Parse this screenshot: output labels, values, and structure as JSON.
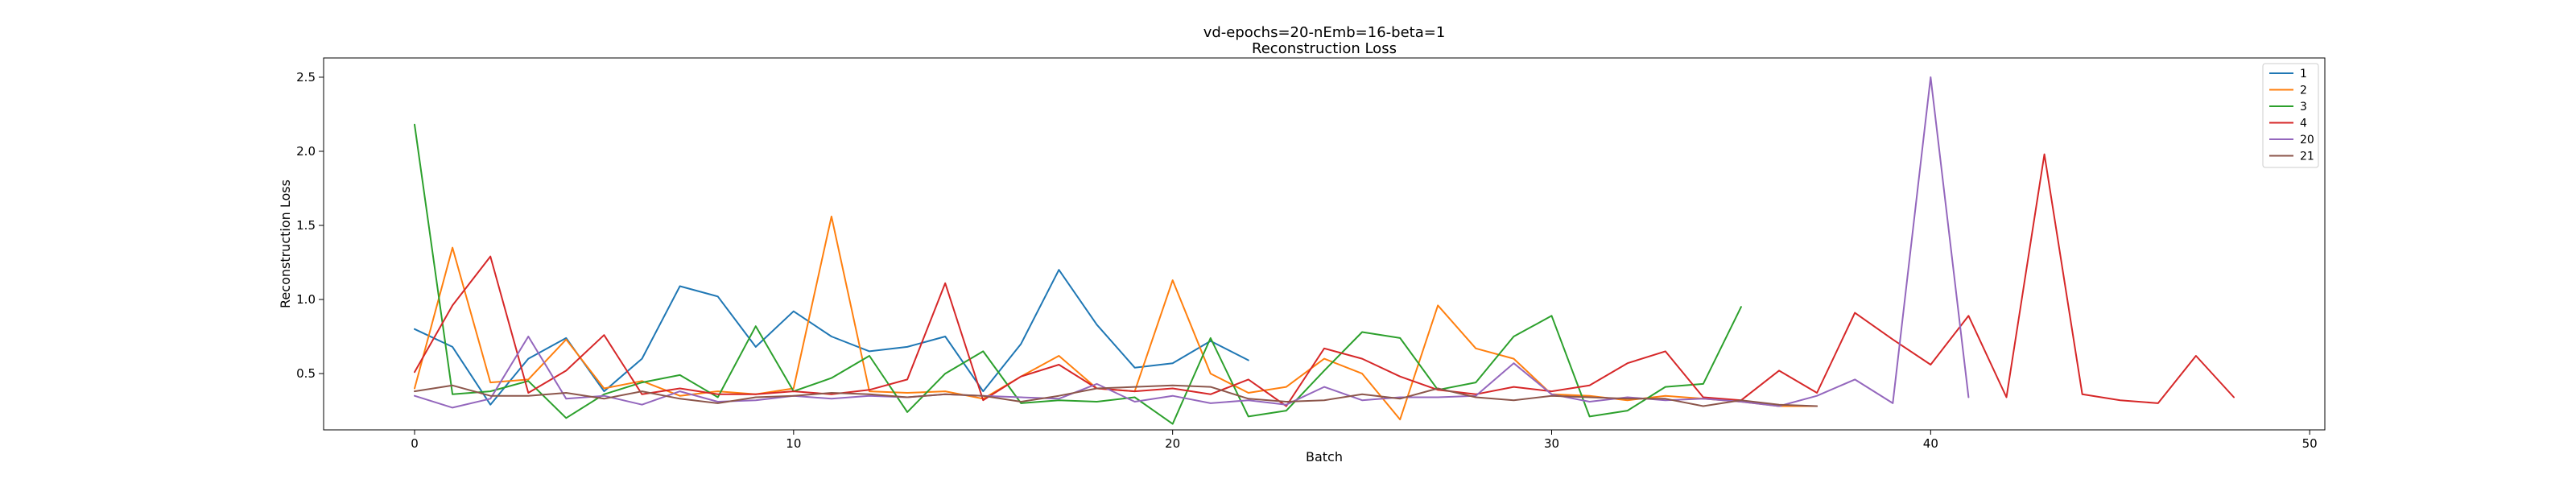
{
  "chart_data": {
    "type": "line",
    "title": "vd-epochs=20-nEmb=16-beta=1",
    "subtitle": "Reconstruction Loss",
    "xlabel": "Batch",
    "ylabel": "Reconstruction Loss",
    "xlim": [
      -2.4,
      50.4
    ],
    "ylim": [
      0.12,
      2.63
    ],
    "xticks": [
      0,
      10,
      20,
      30,
      40,
      50
    ],
    "yticks": [
      0.5,
      1.0,
      1.5,
      2.0,
      2.5
    ],
    "grid": false,
    "legend_position": "top-right",
    "series": [
      {
        "name": "1",
        "color": "#1f77b4",
        "x": [
          0,
          1,
          2,
          3,
          4,
          5,
          6,
          7,
          8,
          9,
          10,
          11,
          12,
          13,
          14,
          15,
          16,
          17,
          18,
          19,
          20,
          21,
          22
        ],
        "values": [
          0.8,
          0.68,
          0.29,
          0.6,
          0.74,
          0.38,
          0.6,
          1.09,
          1.02,
          0.68,
          0.92,
          0.75,
          0.65,
          0.68,
          0.75,
          0.38,
          0.7,
          1.2,
          0.83,
          0.54,
          0.57,
          0.72,
          0.59
        ]
      },
      {
        "name": "2",
        "color": "#ff7f0e",
        "x": [
          0,
          1,
          2,
          3,
          4,
          5,
          6,
          7,
          8,
          9,
          10,
          11,
          12,
          13,
          14,
          15,
          16,
          17,
          18,
          19,
          20,
          21,
          22,
          23,
          24,
          25,
          26,
          27,
          28,
          29,
          30,
          31,
          32,
          33,
          34,
          35,
          36,
          37
        ],
        "values": [
          0.4,
          1.35,
          0.44,
          0.46,
          0.73,
          0.4,
          0.45,
          0.35,
          0.38,
          0.36,
          0.4,
          1.56,
          0.38,
          0.37,
          0.38,
          0.33,
          0.48,
          0.62,
          0.4,
          0.38,
          1.13,
          0.5,
          0.37,
          0.41,
          0.6,
          0.5,
          0.19,
          0.96,
          0.67,
          0.6,
          0.36,
          0.35,
          0.32,
          0.35,
          0.33,
          0.31,
          0.28,
          0.28
        ]
      },
      {
        "name": "3",
        "color": "#2ca02c",
        "x": [
          0,
          1,
          2,
          3,
          4,
          5,
          6,
          7,
          8,
          9,
          10,
          11,
          12,
          13,
          14,
          15,
          16,
          17,
          18,
          19,
          20,
          21,
          22,
          23,
          24,
          25,
          26,
          27,
          28,
          29,
          30,
          31,
          32,
          33,
          34,
          35
        ],
        "values": [
          2.18,
          0.36,
          0.38,
          0.45,
          0.2,
          0.36,
          0.44,
          0.49,
          0.34,
          0.82,
          0.38,
          0.47,
          0.62,
          0.24,
          0.5,
          0.65,
          0.3,
          0.32,
          0.31,
          0.34,
          0.16,
          0.74,
          0.21,
          0.25,
          0.52,
          0.78,
          0.74,
          0.39,
          0.44,
          0.75,
          0.89,
          0.21,
          0.25,
          0.41,
          0.43,
          0.95
        ]
      },
      {
        "name": "4",
        "color": "#d62728",
        "x": [
          0,
          1,
          2,
          3,
          4,
          5,
          6,
          7,
          8,
          9,
          10,
          11,
          12,
          13,
          14,
          15,
          16,
          17,
          18,
          19,
          20,
          21,
          22,
          23,
          24,
          25,
          26,
          27,
          28,
          29,
          30,
          31,
          32,
          33,
          34,
          35,
          36,
          37,
          38,
          39,
          40,
          41,
          42,
          43,
          44,
          45,
          46,
          47,
          48
        ],
        "values": [
          0.51,
          0.96,
          1.29,
          0.37,
          0.52,
          0.76,
          0.36,
          0.4,
          0.36,
          0.36,
          0.38,
          0.36,
          0.39,
          0.46,
          1.11,
          0.32,
          0.48,
          0.56,
          0.4,
          0.38,
          0.4,
          0.36,
          0.46,
          0.28,
          0.67,
          0.6,
          0.48,
          0.39,
          0.36,
          0.41,
          0.38,
          0.42,
          0.57,
          0.65,
          0.34,
          0.32,
          0.52,
          0.37,
          0.91,
          0.73,
          0.56,
          0.89,
          0.34,
          1.98,
          0.36,
          0.32,
          0.3,
          0.62,
          0.34
        ]
      },
      {
        "name": "20",
        "color": "#9467bd",
        "x": [
          0,
          1,
          2,
          3,
          4,
          5,
          6,
          7,
          8,
          9,
          10,
          11,
          12,
          13,
          14,
          15,
          16,
          17,
          18,
          19,
          20,
          21,
          22,
          23,
          24,
          25,
          26,
          27,
          28,
          29,
          30,
          31,
          32,
          33,
          34,
          35,
          36,
          37,
          38,
          39,
          40,
          41
        ],
        "values": [
          0.35,
          0.27,
          0.33,
          0.75,
          0.33,
          0.35,
          0.29,
          0.38,
          0.31,
          0.32,
          0.35,
          0.33,
          0.35,
          0.34,
          0.36,
          0.35,
          0.34,
          0.33,
          0.43,
          0.31,
          0.35,
          0.3,
          0.32,
          0.29,
          0.41,
          0.32,
          0.34,
          0.34,
          0.35,
          0.57,
          0.36,
          0.31,
          0.34,
          0.32,
          0.33,
          0.31,
          0.28,
          0.35,
          0.46,
          0.3,
          2.5,
          0.34
        ]
      },
      {
        "name": "21",
        "color": "#8c564b",
        "x": [
          0,
          1,
          2,
          3,
          4,
          5,
          6,
          7,
          8,
          9,
          10,
          11,
          12,
          13,
          14,
          15,
          16,
          17,
          18,
          19,
          20,
          21,
          22,
          23,
          24,
          25,
          26,
          27,
          28,
          29,
          30,
          31,
          32,
          33,
          34,
          35,
          36,
          37
        ],
        "values": [
          0.38,
          0.42,
          0.35,
          0.35,
          0.37,
          0.33,
          0.38,
          0.33,
          0.3,
          0.34,
          0.35,
          0.37,
          0.36,
          0.34,
          0.36,
          0.35,
          0.31,
          0.35,
          0.4,
          0.41,
          0.42,
          0.41,
          0.33,
          0.31,
          0.32,
          0.36,
          0.33,
          0.4,
          0.34,
          0.32,
          0.35,
          0.34,
          0.33,
          0.33,
          0.28,
          0.32,
          0.29,
          0.28
        ]
      }
    ]
  }
}
